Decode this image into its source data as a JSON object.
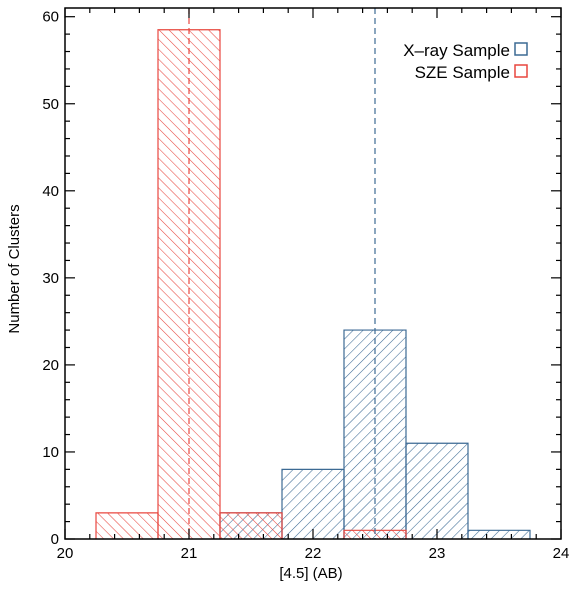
{
  "chart_data": {
    "type": "bar",
    "title": "",
    "xlabel": "[4.5] (AB)",
    "ylabel": "Number of Clusters",
    "xlim": [
      20,
      24
    ],
    "ylim": [
      0,
      61
    ],
    "xticks": [
      20,
      21,
      22,
      23,
      24
    ],
    "xtick_labels": [
      "20",
      "21",
      "22",
      "23",
      "24"
    ],
    "yticks": [
      0,
      10,
      20,
      30,
      40,
      50,
      60
    ],
    "ytick_labels": [
      "0",
      "10",
      "20",
      "30",
      "40",
      "50",
      "60"
    ],
    "grid": false,
    "legend_position": "top-right",
    "series": [
      {
        "name": "X–ray Sample",
        "color": "#3c6a94",
        "hatch": "diagonal-down-right",
        "bins": [
          {
            "x0": 21.25,
            "x1": 21.75,
            "value": 3
          },
          {
            "x0": 21.75,
            "x1": 22.25,
            "value": 8
          },
          {
            "x0": 22.25,
            "x1": 22.75,
            "value": 24
          },
          {
            "x0": 22.75,
            "x1": 23.25,
            "value": 11
          },
          {
            "x0": 23.25,
            "x1": 23.75,
            "value": 1
          }
        ],
        "median": 22.5
      },
      {
        "name": "SZE Sample",
        "color": "#e8473f",
        "hatch": "diagonal-down-left",
        "bins": [
          {
            "x0": 20.25,
            "x1": 20.75,
            "value": 3
          },
          {
            "x0": 20.75,
            "x1": 21.25,
            "value": 58.5
          },
          {
            "x0": 21.25,
            "x1": 21.75,
            "value": 3
          },
          {
            "x0": 22.25,
            "x1": 22.75,
            "value": 1
          }
        ],
        "median": 21.0
      }
    ]
  }
}
